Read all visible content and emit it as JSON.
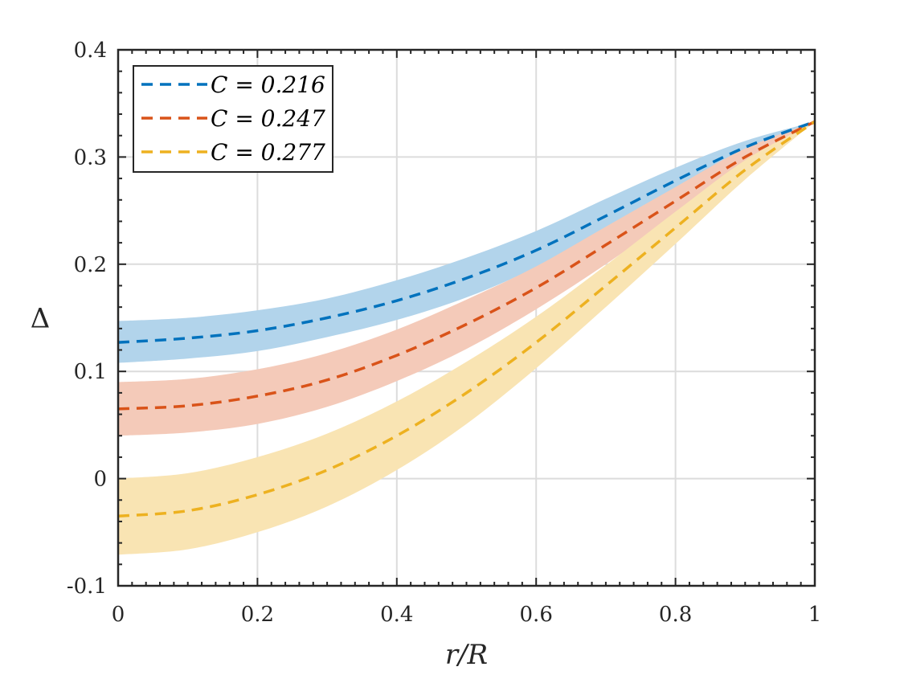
{
  "chart_data": {
    "type": "line",
    "xlabel": "r/R",
    "ylabel": "Δ",
    "xlim": [
      0,
      1
    ],
    "ylim": [
      -0.1,
      0.4
    ],
    "xticks": [
      "0",
      "0.2",
      "0.4",
      "0.6",
      "0.8",
      "1"
    ],
    "yticks": [
      "-0.1",
      "0",
      "0.1",
      "0.2",
      "0.3",
      "0.4"
    ],
    "grid": true,
    "legend_position": "top-left",
    "x": [
      0,
      0.1,
      0.2,
      0.3,
      0.4,
      0.5,
      0.6,
      0.7,
      0.8,
      0.9,
      1.0
    ],
    "series": [
      {
        "name": "C = 0.216",
        "color": "#0072BD",
        "band_color": "#B2D4EB",
        "values": [
          0.127,
          0.131,
          0.138,
          0.15,
          0.166,
          0.187,
          0.213,
          0.245,
          0.278,
          0.309,
          0.333
        ],
        "lower": [
          0.108,
          0.112,
          0.119,
          0.132,
          0.148,
          0.169,
          0.197,
          0.231,
          0.268,
          0.305,
          0.333
        ],
        "upper": [
          0.147,
          0.15,
          0.157,
          0.168,
          0.185,
          0.206,
          0.231,
          0.261,
          0.29,
          0.315,
          0.333
        ]
      },
      {
        "name": "C = 0.247",
        "color": "#D95319",
        "band_color": "#F4CAB9",
        "values": [
          0.065,
          0.068,
          0.077,
          0.092,
          0.115,
          0.144,
          0.178,
          0.218,
          0.259,
          0.3,
          0.333
        ],
        "lower": [
          0.04,
          0.043,
          0.051,
          0.067,
          0.091,
          0.121,
          0.158,
          0.2,
          0.246,
          0.292,
          0.333
        ],
        "upper": [
          0.09,
          0.093,
          0.102,
          0.117,
          0.139,
          0.167,
          0.198,
          0.235,
          0.272,
          0.308,
          0.333
        ]
      },
      {
        "name": "C = 0.277",
        "color": "#EDB120",
        "band_color": "#F9E4B3",
        "values": [
          -0.035,
          -0.03,
          -0.015,
          0.008,
          0.04,
          0.08,
          0.127,
          0.18,
          0.234,
          0.288,
          0.333
        ],
        "lower": [
          -0.071,
          -0.066,
          -0.05,
          -0.026,
          0.008,
          0.051,
          0.103,
          0.16,
          0.219,
          0.279,
          0.333
        ],
        "upper": [
          0.0,
          0.005,
          0.02,
          0.042,
          0.072,
          0.109,
          0.151,
          0.199,
          0.249,
          0.297,
          0.333
        ]
      }
    ]
  }
}
